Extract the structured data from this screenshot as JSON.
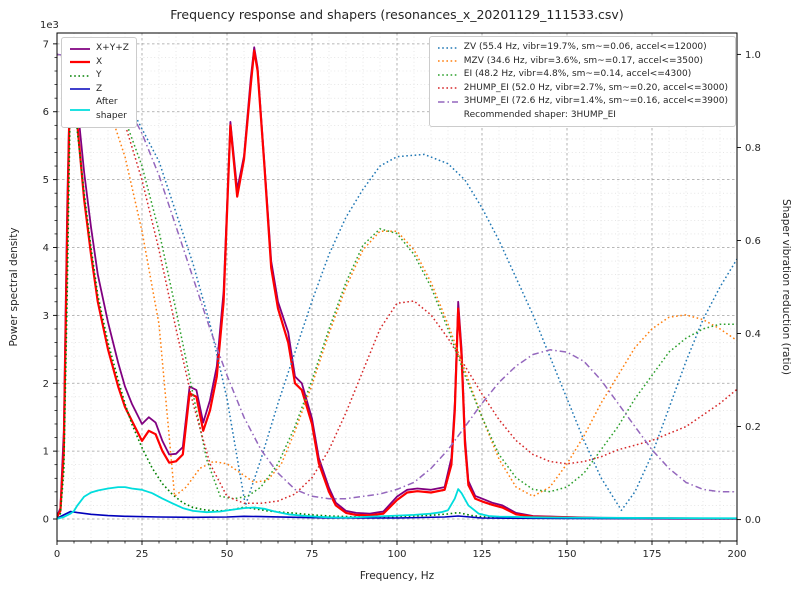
{
  "chart_data": {
    "type": "line",
    "title": "Frequency response and shapers (resonances_x_20201129_111533.csv)",
    "xlabel": "Frequency, Hz",
    "ylabel_left": "Power spectral density",
    "ylabel_right": "Shaper vibration reduction (ratio)",
    "y_offset_text": "1e3",
    "xlim": [
      0,
      200
    ],
    "ylim_left": [
      -324,
      7160
    ],
    "ylim_right": [
      -0.046,
      1.046
    ],
    "ticks_x": [
      0,
      25,
      50,
      75,
      100,
      125,
      150,
      175,
      200
    ],
    "ticks_y_left": [
      0,
      1,
      2,
      3,
      4,
      5,
      6,
      7
    ],
    "y_left_scale": 1000,
    "ticks_y_right": [
      0.0,
      0.2,
      0.4,
      0.6,
      0.8,
      1.0
    ],
    "minor_x_step": 5,
    "minor_y_step": 200,
    "grid": {
      "major_color": "#a0a0a0",
      "minor_color": "#d7d7d7"
    },
    "recommended_shaper": "3HUMP_EI",
    "legend_psd": [
      {
        "label": "X+Y+Z",
        "color": "#800080",
        "style": "solid",
        "width": 1.8
      },
      {
        "label": "X",
        "color": "#ff0000",
        "style": "solid",
        "width": 2.2
      },
      {
        "label": "Y",
        "color": "#008000",
        "style": "dotted",
        "width": 1.6
      },
      {
        "label": "Z",
        "color": "#0000bb",
        "style": "solid",
        "width": 1.6
      },
      {
        "label": "After\nshaper",
        "color": "#00dddd",
        "style": "solid",
        "width": 1.8
      }
    ],
    "legend_shapers": [
      {
        "label": "ZV (55.4 Hz, vibr=19.7%, sm~=0.06, accel<=12000)",
        "color": "#1f77b4",
        "style": "dotted",
        "width": 1.5
      },
      {
        "label": "MZV (34.6 Hz, vibr=3.6%, sm~=0.17, accel<=3500)",
        "color": "#ff7f0e",
        "style": "dotted",
        "width": 1.5
      },
      {
        "label": "EI (48.2 Hz, vibr=4.8%, sm~=0.14, accel<=4300)",
        "color": "#2ca02c",
        "style": "dotted",
        "width": 1.5
      },
      {
        "label": "2HUMP_EI (52.0 Hz, vibr=2.7%, sm~=0.20, accel<=3000)",
        "color": "#d62728",
        "style": "dotted",
        "width": 1.5
      },
      {
        "label": "3HUMP_EI (72.6 Hz, vibr=1.4%, sm~=0.16, accel<=3900)",
        "color": "#9467bd",
        "style": "dashdot",
        "width": 1.5
      },
      {
        "label": "Recommended shaper: 3HUMP_EI"
      }
    ],
    "series": [
      {
        "name": "X+Y+Z",
        "axis": "left",
        "color": "#800080",
        "style": "solid",
        "width": 1.8,
        "x": [
          0,
          1,
          2,
          3,
          4,
          5,
          6,
          8,
          10,
          12,
          15,
          18,
          20,
          22,
          25,
          27,
          29,
          31,
          33,
          35,
          37,
          39,
          41,
          43,
          45,
          47,
          49,
          51,
          53,
          55,
          57,
          58,
          59,
          61,
          63,
          65,
          68,
          70,
          72,
          75,
          77,
          80,
          82,
          85,
          88,
          92,
          96,
          100,
          103,
          106,
          110,
          114,
          116,
          117,
          118,
          119,
          120,
          121,
          123,
          125,
          128,
          131,
          135,
          140,
          150,
          160,
          180,
          200
        ],
        "y": [
          40,
          160,
          1300,
          4600,
          6950,
          6700,
          6100,
          5100,
          4300,
          3600,
          2900,
          2300,
          1950,
          1700,
          1400,
          1500,
          1420,
          1150,
          950,
          960,
          1060,
          1950,
          1900,
          1420,
          1750,
          2250,
          3350,
          5850,
          4850,
          5350,
          6500,
          6950,
          6650,
          5250,
          3800,
          3200,
          2750,
          2100,
          2000,
          1480,
          900,
          460,
          240,
          120,
          90,
          80,
          110,
          330,
          430,
          450,
          430,
          470,
          900,
          1700,
          3200,
          2500,
          1200,
          560,
          340,
          300,
          240,
          200,
          90,
          45,
          30,
          18,
          10,
          6
        ]
      },
      {
        "name": "X",
        "axis": "left",
        "color": "#ff0000",
        "style": "solid",
        "width": 2.2,
        "x": [
          0,
          1,
          2,
          3,
          4,
          5,
          6,
          8,
          10,
          12,
          15,
          18,
          20,
          22,
          25,
          27,
          29,
          31,
          33,
          35,
          37,
          39,
          41,
          43,
          45,
          47,
          49,
          51,
          53,
          55,
          57,
          58,
          59,
          61,
          63,
          65,
          68,
          70,
          72,
          75,
          77,
          80,
          82,
          85,
          88,
          92,
          96,
          100,
          103,
          106,
          110,
          114,
          116,
          117,
          118,
          119,
          120,
          121,
          123,
          125,
          128,
          131,
          135,
          140,
          150,
          160,
          180,
          200
        ],
        "y": [
          30,
          120,
          1000,
          4200,
          6900,
          6500,
          5800,
          4700,
          3900,
          3200,
          2500,
          1950,
          1650,
          1450,
          1150,
          1300,
          1250,
          1000,
          830,
          850,
          950,
          1850,
          1800,
          1300,
          1600,
          2100,
          3200,
          5800,
          4750,
          5300,
          6400,
          6900,
          6600,
          5200,
          3700,
          3100,
          2600,
          2000,
          1900,
          1400,
          820,
          400,
          200,
          90,
          60,
          55,
          80,
          280,
          390,
          410,
          390,
          430,
          800,
          1600,
          3100,
          2400,
          1100,
          500,
          300,
          260,
          210,
          170,
          70,
          35,
          25,
          12,
          8,
          4
        ]
      },
      {
        "name": "Y",
        "axis": "left",
        "color": "#008000",
        "style": "dotted",
        "width": 1.6,
        "x": [
          0,
          1,
          2,
          3,
          4,
          5,
          6,
          8,
          10,
          12,
          15,
          18,
          20,
          22,
          25,
          28,
          31,
          34,
          37,
          40,
          44,
          48,
          52,
          55,
          58,
          62,
          66,
          70,
          75,
          80,
          90,
          100,
          110,
          115,
          118,
          122,
          126,
          130,
          140,
          160,
          200
        ],
        "y": [
          20,
          80,
          700,
          3300,
          6500,
          6300,
          5700,
          4800,
          4000,
          3300,
          2600,
          2050,
          1700,
          1400,
          1050,
          750,
          520,
          360,
          240,
          170,
          130,
          120,
          140,
          175,
          150,
          120,
          100,
          85,
          60,
          45,
          30,
          35,
          55,
          75,
          95,
          50,
          30,
          20,
          10,
          6,
          3
        ]
      },
      {
        "name": "Z",
        "axis": "left",
        "color": "#0000bb",
        "style": "solid",
        "width": 1.6,
        "x": [
          0,
          2,
          4,
          6,
          10,
          15,
          20,
          30,
          40,
          50,
          55,
          60,
          70,
          80,
          100,
          114,
          118,
          125,
          150,
          200
        ],
        "y": [
          10,
          60,
          110,
          95,
          70,
          50,
          40,
          30,
          25,
          30,
          40,
          35,
          25,
          15,
          15,
          30,
          45,
          15,
          8,
          5
        ]
      },
      {
        "name": "After shaper",
        "axis": "left",
        "color": "#00dddd",
        "style": "solid",
        "width": 1.8,
        "x": [
          0,
          2,
          4,
          5,
          6,
          8,
          10,
          12,
          15,
          18,
          20,
          22,
          25,
          28,
          31,
          34,
          37,
          40,
          44,
          48,
          52,
          55,
          58,
          61,
          64,
          68,
          72,
          76,
          80,
          85,
          90,
          95,
          100,
          105,
          110,
          113,
          115,
          117,
          118,
          119,
          121,
          124,
          127,
          130,
          140,
          150,
          175,
          200
        ],
        "y": [
          5,
          30,
          80,
          120,
          200,
          330,
          390,
          420,
          450,
          470,
          470,
          450,
          430,
          380,
          300,
          230,
          160,
          120,
          100,
          110,
          140,
          160,
          170,
          150,
          110,
          70,
          50,
          35,
          25,
          20,
          30,
          40,
          50,
          60,
          80,
          100,
          130,
          300,
          440,
          380,
          200,
          80,
          45,
          35,
          25,
          20,
          15,
          10
        ]
      },
      {
        "name": "ZV",
        "axis": "right",
        "color": "#1f77b4",
        "style": "dotted",
        "width": 1.5,
        "x": [
          0,
          10,
          20,
          30,
          40,
          45,
          50,
          55.4,
          60,
          65,
          70,
          75,
          80,
          85,
          90,
          95,
          100,
          108,
          115,
          120,
          125,
          130,
          135,
          140,
          145,
          150,
          155,
          160,
          166,
          170,
          175,
          180,
          185,
          190,
          195,
          200
        ],
        "y": [
          1.0,
          0.98,
          0.91,
          0.77,
          0.55,
          0.42,
          0.26,
          0.03,
          0.13,
          0.25,
          0.36,
          0.47,
          0.57,
          0.65,
          0.71,
          0.76,
          0.78,
          0.785,
          0.765,
          0.73,
          0.67,
          0.6,
          0.52,
          0.44,
          0.35,
          0.26,
          0.17,
          0.09,
          0.02,
          0.06,
          0.14,
          0.24,
          0.34,
          0.43,
          0.5,
          0.56
        ]
      },
      {
        "name": "MZV",
        "axis": "right",
        "color": "#ff7f0e",
        "style": "dotted",
        "width": 1.5,
        "x": [
          0,
          5,
          10,
          15,
          20,
          25,
          30,
          34.6,
          38,
          42,
          46,
          50,
          54,
          58,
          62,
          66,
          70,
          75,
          80,
          85,
          90,
          95,
          100,
          105,
          110,
          115,
          120,
          125,
          130,
          135,
          140,
          145,
          150,
          155,
          160,
          165,
          170,
          175,
          180,
          185,
          190,
          195,
          200
        ],
        "y": [
          1.0,
          0.99,
          0.96,
          0.89,
          0.78,
          0.62,
          0.42,
          0.05,
          0.07,
          0.11,
          0.125,
          0.12,
          0.1,
          0.08,
          0.085,
          0.12,
          0.19,
          0.29,
          0.4,
          0.5,
          0.58,
          0.62,
          0.62,
          0.58,
          0.51,
          0.42,
          0.32,
          0.22,
          0.13,
          0.07,
          0.05,
          0.07,
          0.12,
          0.18,
          0.25,
          0.31,
          0.37,
          0.41,
          0.435,
          0.44,
          0.43,
          0.41,
          0.385
        ]
      },
      {
        "name": "EI",
        "axis": "right",
        "color": "#2ca02c",
        "style": "dotted",
        "width": 1.5,
        "x": [
          0,
          5,
          10,
          15,
          20,
          25,
          30,
          35,
          40,
          44,
          48,
          52,
          56,
          60,
          65,
          70,
          75,
          80,
          85,
          90,
          95,
          100,
          105,
          110,
          115,
          120,
          125,
          130,
          135,
          140,
          145,
          150,
          155,
          160,
          165,
          170,
          175,
          180,
          185,
          190,
          195,
          200
        ],
        "y": [
          1.0,
          0.99,
          0.97,
          0.93,
          0.86,
          0.76,
          0.62,
          0.45,
          0.27,
          0.13,
          0.05,
          0.045,
          0.05,
          0.07,
          0.12,
          0.2,
          0.3,
          0.41,
          0.51,
          0.59,
          0.625,
          0.615,
          0.57,
          0.5,
          0.41,
          0.31,
          0.22,
          0.14,
          0.09,
          0.065,
          0.06,
          0.07,
          0.1,
          0.15,
          0.2,
          0.26,
          0.31,
          0.36,
          0.39,
          0.41,
          0.42,
          0.42
        ]
      },
      {
        "name": "2HUMP_EI",
        "axis": "right",
        "color": "#d62728",
        "style": "dotted",
        "width": 1.5,
        "x": [
          0,
          5,
          10,
          15,
          20,
          25,
          30,
          35,
          40,
          45,
          50,
          55,
          60,
          65,
          70,
          75,
          80,
          85,
          90,
          95,
          100,
          105,
          110,
          115,
          120,
          125,
          130,
          135,
          140,
          145,
          150,
          155,
          160,
          165,
          170,
          175,
          180,
          185,
          190,
          195,
          200
        ],
        "y": [
          1.0,
          0.99,
          0.97,
          0.93,
          0.85,
          0.73,
          0.58,
          0.41,
          0.25,
          0.12,
          0.05,
          0.035,
          0.035,
          0.04,
          0.055,
          0.09,
          0.15,
          0.23,
          0.32,
          0.41,
          0.465,
          0.47,
          0.44,
          0.39,
          0.33,
          0.27,
          0.215,
          0.17,
          0.14,
          0.125,
          0.12,
          0.125,
          0.135,
          0.15,
          0.16,
          0.17,
          0.185,
          0.2,
          0.225,
          0.25,
          0.28
        ]
      },
      {
        "name": "3HUMP_EI",
        "axis": "right",
        "color": "#9467bd",
        "style": "dashdot",
        "width": 1.5,
        "x": [
          0,
          5,
          10,
          15,
          20,
          25,
          30,
          35,
          40,
          45,
          50,
          55,
          60,
          65,
          70,
          75,
          80,
          85,
          90,
          95,
          100,
          105,
          110,
          115,
          120,
          125,
          130,
          135,
          140,
          145,
          150,
          155,
          160,
          165,
          170,
          175,
          180,
          185,
          190,
          195,
          200
        ],
        "y": [
          1.0,
          0.995,
          0.98,
          0.95,
          0.9,
          0.83,
          0.74,
          0.63,
          0.52,
          0.41,
          0.31,
          0.22,
          0.15,
          0.1,
          0.065,
          0.05,
          0.045,
          0.045,
          0.05,
          0.055,
          0.065,
          0.08,
          0.11,
          0.15,
          0.2,
          0.25,
          0.295,
          0.33,
          0.355,
          0.365,
          0.36,
          0.34,
          0.3,
          0.25,
          0.2,
          0.15,
          0.11,
          0.08,
          0.065,
          0.06,
          0.06
        ]
      }
    ]
  }
}
